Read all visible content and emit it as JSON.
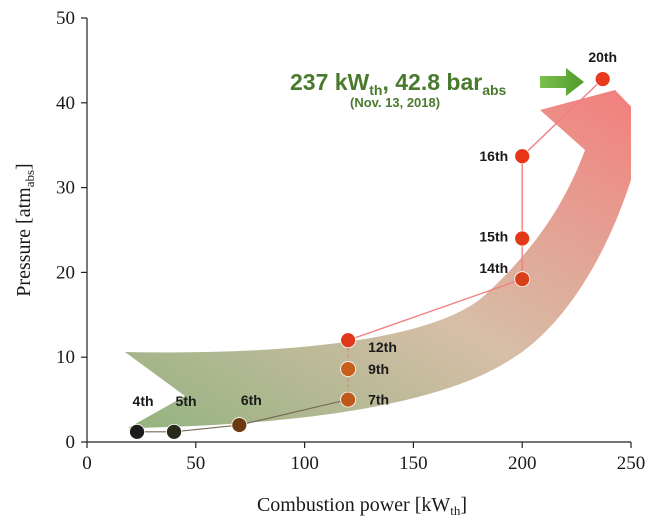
{
  "chart_data": {
    "type": "scatter",
    "xlabel": {
      "main": "Combustion power [kW",
      "sub": "th",
      "end": "]"
    },
    "ylabel": {
      "main": "Pressure [atm",
      "sub": "abs",
      "end": "]"
    },
    "xlim": [
      0,
      250
    ],
    "ylim": [
      0,
      50
    ],
    "xticks": [
      0,
      50,
      100,
      150,
      200,
      250
    ],
    "yticks": [
      0,
      10,
      20,
      30,
      40,
      50
    ],
    "grid": false,
    "points": [
      {
        "label": "4th",
        "x": 23,
        "y": 1.2,
        "color": "#1c1c1c"
      },
      {
        "label": "5th",
        "x": 40,
        "y": 1.2,
        "color": "#2a2a1a"
      },
      {
        "label": "6th",
        "x": 70,
        "y": 2.0,
        "color": "#6b3a12"
      },
      {
        "label": "7th",
        "x": 120,
        "y": 5.0,
        "color": "#c0581a"
      },
      {
        "label": "9th",
        "x": 120,
        "y": 8.6,
        "color": "#c8601c"
      },
      {
        "label": "12th",
        "x": 120,
        "y": 12.0,
        "color": "#e0381a"
      },
      {
        "label": "14th",
        "x": 200,
        "y": 19.2,
        "color": "#d8401a"
      },
      {
        "label": "15th",
        "x": 200,
        "y": 24.0,
        "color": "#e23a18"
      },
      {
        "label": "16th",
        "x": 200,
        "y": 33.7,
        "color": "#e83418"
      },
      {
        "label": "20th",
        "x": 237,
        "y": 42.8,
        "color": "#ea3a1e"
      }
    ],
    "annotation": {
      "main": "237 kW",
      "main_sub": "th",
      "mid": ", 42.8 bar",
      "mid_sub": "abs",
      "date": "(Nov. 13, 2018)"
    },
    "colors": {
      "arrow_start": "#5e8f46",
      "arrow_end": "#f15a5a",
      "line_dark": "#7a6a5a",
      "line_red": "#f28080",
      "highlight_arrow": "#6aaa3e"
    }
  }
}
